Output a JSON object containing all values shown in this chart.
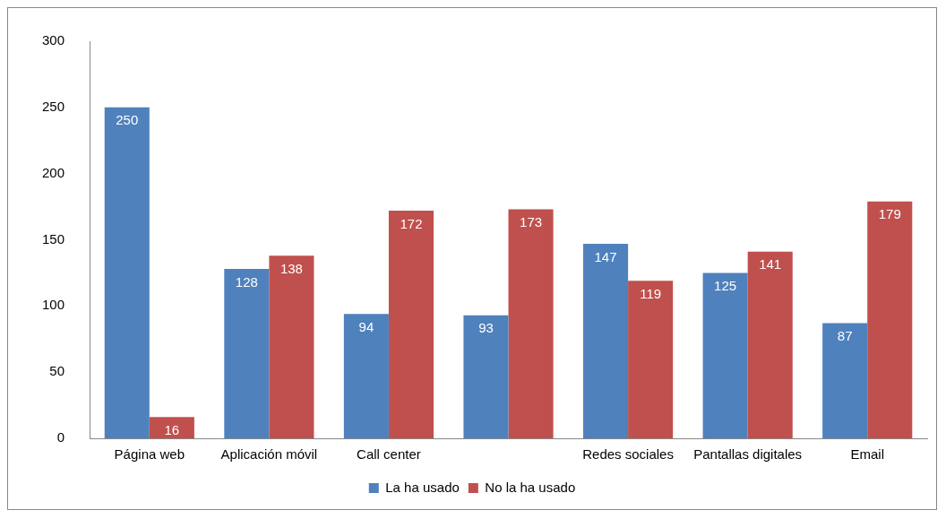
{
  "chart_data": {
    "type": "bar",
    "categories": [
      "Página web",
      "Aplicación móvil",
      "Call center",
      null,
      "Redes sociales",
      "Pantallas digitales",
      "Email"
    ],
    "series": [
      {
        "name": "La ha usado",
        "color": "#4f81bd",
        "values": [
          250,
          128,
          94,
          93,
          147,
          125,
          87
        ]
      },
      {
        "name": "No la ha usado",
        "color": "#c0504d",
        "values": [
          16,
          138,
          172,
          173,
          119,
          141,
          179
        ]
      }
    ],
    "ylim": [
      0,
      300
    ],
    "yticks": [
      0,
      50,
      100,
      150,
      200,
      250,
      300
    ],
    "data_labels": true,
    "legend": "bottom"
  }
}
